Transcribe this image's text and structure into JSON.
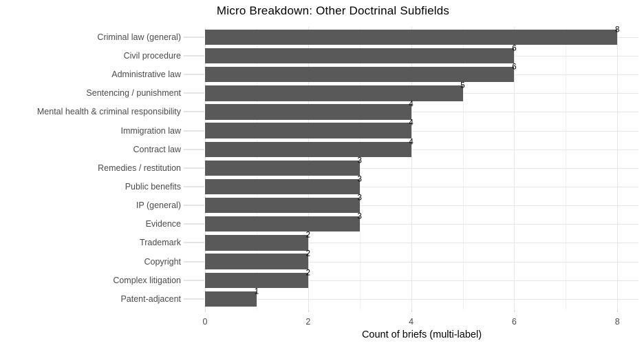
{
  "chart_data": {
    "type": "bar",
    "orientation": "horizontal",
    "title": "Micro Breakdown: Other Doctrinal Subfields",
    "xlabel": "Count of briefs (multi-label)",
    "ylabel": "",
    "categories": [
      "Criminal law (general)",
      "Civil procedure",
      "Administrative law",
      "Sentencing / punishment",
      "Mental health & criminal responsibility",
      "Immigration law",
      "Contract law",
      "Remedies / restitution",
      "Public benefits",
      "IP (general)",
      "Evidence",
      "Trademark",
      "Copyright",
      "Complex litigation",
      "Patent-adjacent"
    ],
    "values": [
      8,
      6,
      6,
      5,
      4,
      4,
      4,
      3,
      3,
      3,
      3,
      2,
      2,
      2,
      1
    ],
    "bar_value_labels": [
      "8",
      "6",
      "6",
      "5",
      "4",
      "4",
      "4",
      "3",
      "3",
      "3",
      "3",
      "2",
      "2",
      "2",
      "1"
    ],
    "xlim": [
      0,
      8.4
    ],
    "x_major_ticks": [
      0,
      2,
      4,
      6,
      8
    ],
    "x_tick_labels": [
      "0",
      "2",
      "4",
      "6",
      "8"
    ],
    "x_minor_gridlines": [
      1,
      3,
      5,
      7
    ],
    "grid": true,
    "legend_position": "none",
    "colors": {
      "bar_fill": "#595959",
      "grid_major": "#e7e7e7",
      "grid_minor": "#f1f1f1",
      "axis_text": "#4b4b4b",
      "title_text": "#000000",
      "value_label_text": "#000000",
      "y_tick": "#e4e4e4",
      "x_tick": "#d6d6d6",
      "background": "#ffffff"
    }
  }
}
